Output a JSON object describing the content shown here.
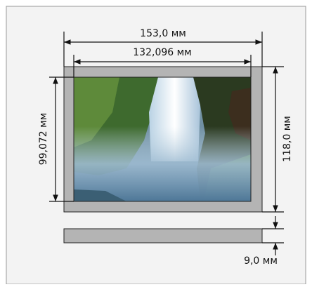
{
  "dimensions": {
    "outer_width": "153,0 мм",
    "inner_width": "132,096 мм",
    "inner_height": "99,072 мм",
    "outer_height": "118,0 мм",
    "depth": "9,0 мм"
  }
}
